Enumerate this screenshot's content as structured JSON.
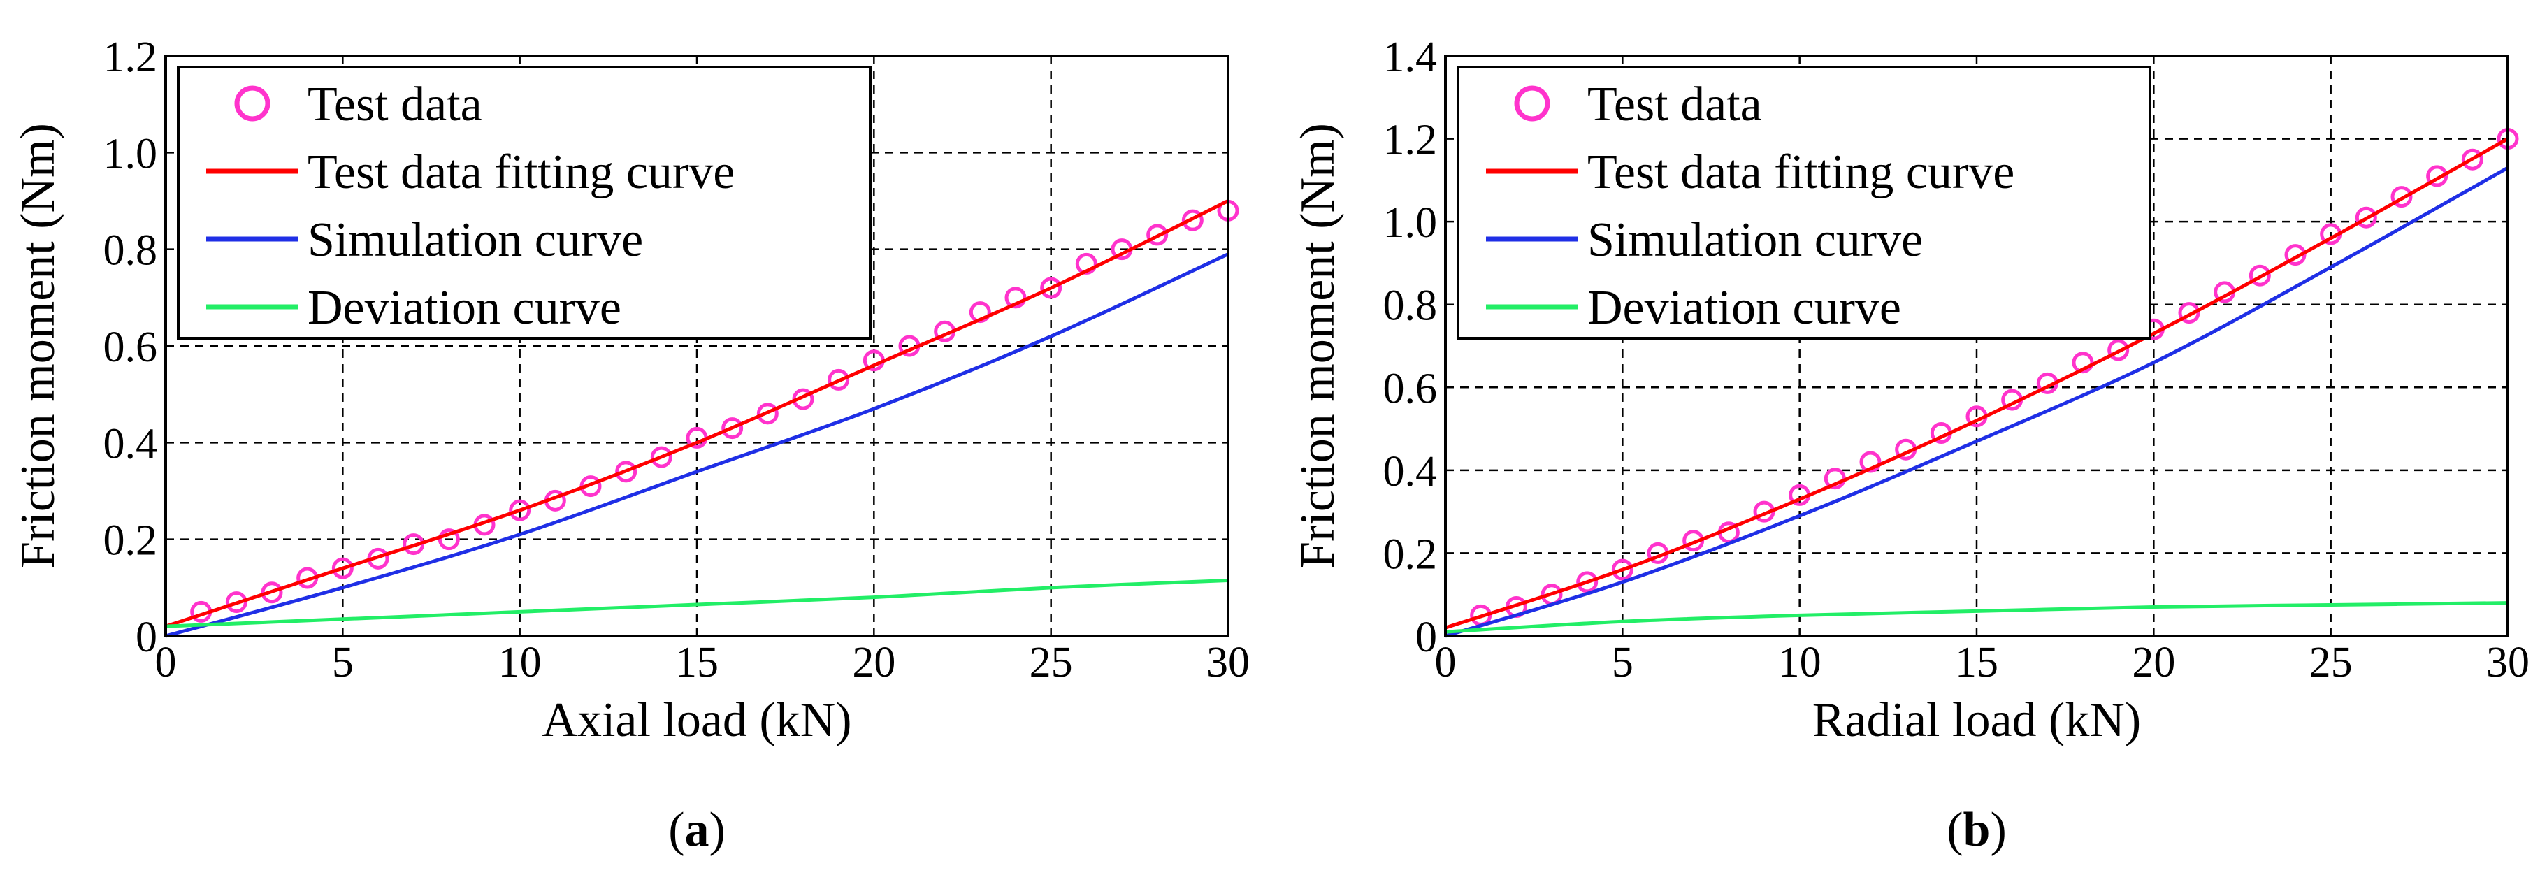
{
  "colors": {
    "test_data": "#ff33cc",
    "fitting_curve": "#ff0000",
    "simulation_curve": "#1f2fe6",
    "deviation_curve": "#22ee66",
    "grid": "#000000",
    "axes": "#000000"
  },
  "chart_data": [
    {
      "type": "line",
      "panel_label": "a",
      "title": "",
      "xlabel": "Axial load (kN)",
      "ylabel": "Friction moment (Nm)",
      "xlim": [
        0,
        30
      ],
      "ylim": [
        0,
        1.2
      ],
      "xticks": [
        0,
        5,
        10,
        15,
        20,
        25,
        30
      ],
      "yticks": [
        0,
        0.2,
        0.4,
        0.6,
        0.8,
        1.0,
        1.2
      ],
      "ytick_labels": [
        "0",
        "0.2",
        "0.4",
        "0.6",
        "0.8",
        "1.0",
        "1.2"
      ],
      "grid": true,
      "legend_position": "top-left",
      "series": [
        {
          "name": "Test data",
          "style": "markers",
          "x": [
            1,
            2,
            3,
            4,
            5,
            6,
            7,
            8,
            9,
            10,
            11,
            12,
            13,
            14,
            15,
            16,
            17,
            18,
            19,
            20,
            21,
            22,
            23,
            24,
            25,
            26,
            27,
            28,
            29,
            30
          ],
          "y": [
            0.05,
            0.07,
            0.09,
            0.12,
            0.14,
            0.16,
            0.19,
            0.2,
            0.23,
            0.26,
            0.28,
            0.31,
            0.34,
            0.37,
            0.41,
            0.43,
            0.46,
            0.49,
            0.53,
            0.57,
            0.6,
            0.63,
            0.67,
            0.7,
            0.72,
            0.77,
            0.8,
            0.83,
            0.86,
            0.88
          ]
        },
        {
          "name": "Test data fitting curve",
          "style": "line",
          "x": [
            0,
            5,
            10,
            15,
            20,
            25,
            30
          ],
          "y": [
            0.02,
            0.14,
            0.26,
            0.4,
            0.56,
            0.72,
            0.9
          ]
        },
        {
          "name": "Simulation curve",
          "style": "line",
          "x": [
            0,
            5,
            10,
            15,
            20,
            25,
            30
          ],
          "y": [
            0.0,
            0.1,
            0.21,
            0.34,
            0.47,
            0.62,
            0.79
          ]
        },
        {
          "name": "Deviation curve",
          "style": "line",
          "x": [
            0,
            5,
            10,
            15,
            20,
            25,
            30
          ],
          "y": [
            0.02,
            0.035,
            0.05,
            0.065,
            0.08,
            0.1,
            0.115
          ]
        }
      ]
    },
    {
      "type": "line",
      "panel_label": "b",
      "title": "",
      "xlabel": "Radial load (kN)",
      "ylabel": "Friction moment (Nm)",
      "xlim": [
        0,
        30
      ],
      "ylim": [
        0,
        1.4
      ],
      "xticks": [
        0,
        5,
        10,
        15,
        20,
        25,
        30
      ],
      "yticks": [
        0,
        0.2,
        0.4,
        0.6,
        0.8,
        1.0,
        1.2,
        1.4
      ],
      "ytick_labels": [
        "0",
        "0.2",
        "0.4",
        "0.6",
        "0.8",
        "1.0",
        "1.2",
        "1.4"
      ],
      "grid": true,
      "legend_position": "top-left",
      "series": [
        {
          "name": "Test data",
          "style": "markers",
          "x": [
            1,
            2,
            3,
            4,
            5,
            6,
            7,
            8,
            9,
            10,
            11,
            12,
            13,
            14,
            15,
            16,
            17,
            18,
            19,
            20,
            21,
            22,
            23,
            24,
            25,
            26,
            27,
            28,
            29,
            30
          ],
          "y": [
            0.05,
            0.07,
            0.1,
            0.13,
            0.16,
            0.2,
            0.23,
            0.25,
            0.3,
            0.34,
            0.38,
            0.42,
            0.45,
            0.49,
            0.53,
            0.57,
            0.61,
            0.66,
            0.69,
            0.74,
            0.78,
            0.83,
            0.87,
            0.92,
            0.97,
            1.01,
            1.06,
            1.11,
            1.15,
            1.2
          ]
        },
        {
          "name": "Test data fitting curve",
          "style": "line",
          "x": [
            0,
            5,
            10,
            15,
            20,
            25,
            30
          ],
          "y": [
            0.02,
            0.16,
            0.33,
            0.52,
            0.73,
            0.96,
            1.2
          ]
        },
        {
          "name": "Simulation curve",
          "style": "line",
          "x": [
            0,
            5,
            10,
            15,
            20,
            25,
            30
          ],
          "y": [
            0.0,
            0.13,
            0.29,
            0.47,
            0.66,
            0.89,
            1.13
          ]
        },
        {
          "name": "Deviation curve",
          "style": "line",
          "x": [
            0,
            5,
            10,
            15,
            20,
            25,
            30
          ],
          "y": [
            0.01,
            0.035,
            0.05,
            0.06,
            0.07,
            0.075,
            0.08
          ]
        }
      ]
    }
  ]
}
